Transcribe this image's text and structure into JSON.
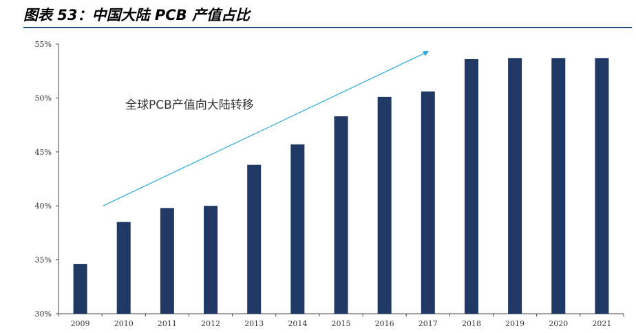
{
  "figure": {
    "title": "图表 53：中国大陆 PCB 产值占比"
  },
  "colors": {
    "bar": "#1f3864",
    "axis": "#444444",
    "arrow": "#2aa8e0",
    "title_rule": "#1f4e8c"
  },
  "chart_data": {
    "type": "bar",
    "title": "",
    "xlabel": "",
    "ylabel": "",
    "categories": [
      "2009",
      "2010",
      "2011",
      "2012",
      "2013",
      "2014",
      "2015",
      "2016",
      "2017",
      "2018",
      "2019",
      "2020",
      "2021"
    ],
    "series": [
      {
        "values": [
          34.6,
          38.5,
          39.8,
          40.0,
          43.8,
          45.7,
          48.3,
          50.1,
          50.6,
          53.6,
          53.7,
          53.7,
          53.7
        ]
      }
    ],
    "ylim": [
      30,
      55
    ],
    "yticks": [
      30,
      35,
      40,
      45,
      50,
      55
    ],
    "ytick_labels": [
      "30%",
      "35%",
      "40%",
      "45%",
      "50%",
      "55%"
    ],
    "grid": false,
    "legend": "none",
    "annotation": {
      "text": "全球PCB产值向大陆转移",
      "arrow_from": {
        "x": "2010",
        "y": 40.0
      },
      "arrow_to": {
        "x": "2017",
        "y": 54.3
      }
    }
  }
}
